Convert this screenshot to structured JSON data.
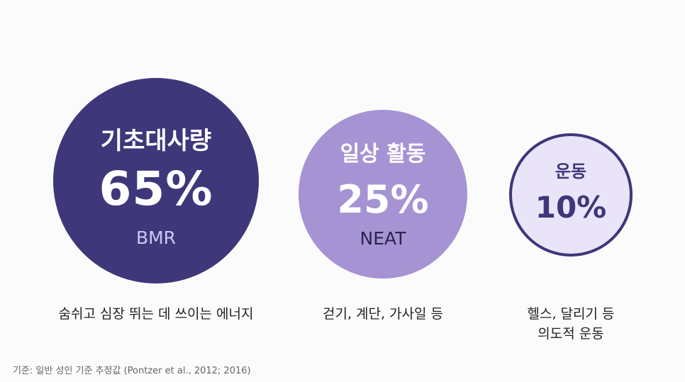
{
  "colors": {
    "background": "#fbfbfb",
    "bmr_fill": "#3e377a",
    "neat_fill": "#a593d3",
    "exercise_fill": "#e9e4f7",
    "exercise_border": "#3e377a",
    "caption_text": "#222222",
    "footnote_text": "#666666"
  },
  "components": [
    {
      "title": "기초대사량",
      "value": "65%",
      "abbr": "BMR",
      "caption": "숨쉬고 심장 뛰는 데 쓰이는 에너지"
    },
    {
      "title": "일상 활동",
      "value": "25%",
      "abbr": "NEAT",
      "caption": "걷기, 계단, 가사일 등"
    },
    {
      "title": "운동",
      "value": "10%",
      "caption_line1": "헬스, 달리기 등",
      "caption_line2": "의도적 운동"
    }
  ],
  "footnote": "기준: 일반 성인 기준 추정값 (Pontzer et al., 2012; 2016)"
}
